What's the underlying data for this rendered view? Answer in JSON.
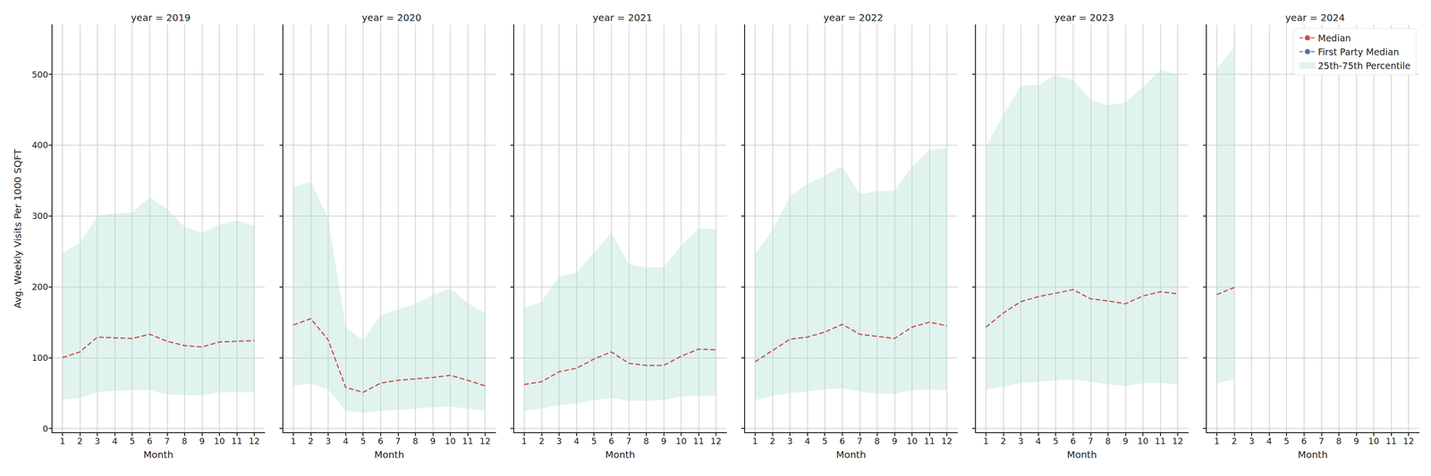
{
  "chart_data": [
    {
      "type": "line",
      "title": "year = 2019",
      "xlabel": "Month",
      "ylabel": "Avg. Weekly Visits Per 1000 SQFT",
      "x": [
        1,
        2,
        3,
        4,
        5,
        6,
        7,
        8,
        9,
        10,
        11,
        12
      ],
      "xlim": [
        0.4,
        12.6
      ],
      "xticks": [
        1,
        2,
        3,
        4,
        5,
        6,
        7,
        8,
        9,
        10,
        11,
        12
      ],
      "ylim": [
        -6,
        570
      ],
      "yticks": [
        0,
        100,
        200,
        300,
        400,
        500
      ],
      "grid": true,
      "series": [
        {
          "name": "Median",
          "color": "#c44e52",
          "line_style": "dashed",
          "values": [
            100,
            108,
            129,
            128,
            127,
            133,
            123,
            117,
            115,
            122,
            123,
            124
          ]
        },
        {
          "name": "First Party Median",
          "color": "#4c72b0",
          "line_style": "dashed",
          "values": [
            null,
            null,
            null,
            null,
            null,
            null,
            null,
            null,
            null,
            null,
            null,
            null
          ]
        },
        {
          "name": "25th-75th Percentile",
          "type": "band",
          "color": "#a8dccd",
          "lower": [
            40,
            43,
            51,
            53,
            54,
            54,
            48,
            47,
            47,
            51,
            51,
            51
          ],
          "upper": [
            248,
            262,
            300,
            304,
            305,
            326,
            310,
            285,
            276,
            288,
            294,
            286
          ]
        }
      ]
    },
    {
      "type": "line",
      "title": "year = 2020",
      "xlabel": "Month",
      "tick_labels": "x",
      "x": [
        1,
        2,
        3,
        4,
        5,
        6,
        7,
        8,
        9,
        10,
        11,
        12
      ],
      "xlim": [
        0.4,
        12.6
      ],
      "xticks": [
        1,
        2,
        3,
        4,
        5,
        6,
        7,
        8,
        9,
        10,
        11,
        12
      ],
      "ylim": [
        -6,
        570
      ],
      "yticks": [
        0,
        100,
        200,
        300,
        400,
        500
      ],
      "grid": true,
      "series": [
        {
          "name": "Median",
          "color": "#c44e52",
          "line_style": "dashed",
          "values": [
            146,
            155,
            125,
            58,
            51,
            64,
            68,
            70,
            72,
            75,
            68,
            60
          ]
        },
        {
          "name": "First Party Median",
          "color": "#4c72b0",
          "line_style": "dashed",
          "values": [
            null,
            null,
            null,
            null,
            null,
            null,
            null,
            null,
            null,
            null,
            null,
            null
          ]
        },
        {
          "name": "25th-75th Percentile",
          "type": "band",
          "color": "#a8dccd",
          "lower": [
            60,
            63,
            55,
            25,
            22,
            25,
            26,
            28,
            30,
            31,
            28,
            25
          ],
          "upper": [
            341,
            348,
            297,
            143,
            124,
            160,
            168,
            176,
            188,
            198,
            177,
            163
          ]
        }
      ]
    },
    {
      "type": "line",
      "title": "year = 2021",
      "xlabel": "Month",
      "tick_labels": "x",
      "x": [
        1,
        2,
        3,
        4,
        5,
        6,
        7,
        8,
        9,
        10,
        11,
        12
      ],
      "xlim": [
        0.4,
        12.6
      ],
      "xticks": [
        1,
        2,
        3,
        4,
        5,
        6,
        7,
        8,
        9,
        10,
        11,
        12
      ],
      "ylim": [
        -6,
        570
      ],
      "yticks": [
        0,
        100,
        200,
        300,
        400,
        500
      ],
      "grid": true,
      "series": [
        {
          "name": "Median",
          "color": "#c44e52",
          "line_style": "dashed",
          "values": [
            62,
            66,
            80,
            85,
            98,
            108,
            92,
            89,
            89,
            102,
            112,
            111
          ]
        },
        {
          "name": "First Party Median",
          "color": "#4c72b0",
          "line_style": "dashed",
          "values": [
            null,
            null,
            null,
            null,
            null,
            null,
            null,
            null,
            null,
            null,
            null,
            null
          ]
        },
        {
          "name": "25th-75th Percentile",
          "type": "band",
          "color": "#a8dccd",
          "lower": [
            25,
            28,
            33,
            35,
            40,
            43,
            39,
            39,
            40,
            45,
            46,
            46
          ],
          "upper": [
            170,
            179,
            215,
            220,
            248,
            277,
            232,
            227,
            228,
            258,
            283,
            281
          ]
        }
      ]
    },
    {
      "type": "line",
      "title": "year = 2022",
      "xlabel": "Month",
      "tick_labels": "x",
      "x": [
        1,
        2,
        3,
        4,
        5,
        6,
        7,
        8,
        9,
        10,
        11,
        12
      ],
      "xlim": [
        0.4,
        12.6
      ],
      "xticks": [
        1,
        2,
        3,
        4,
        5,
        6,
        7,
        8,
        9,
        10,
        11,
        12
      ],
      "ylim": [
        -6,
        570
      ],
      "yticks": [
        0,
        100,
        200,
        300,
        400,
        500
      ],
      "grid": true,
      "series": [
        {
          "name": "Median",
          "color": "#c44e52",
          "line_style": "dashed",
          "values": [
            94,
            110,
            126,
            129,
            136,
            147,
            133,
            130,
            127,
            143,
            150,
            145
          ]
        },
        {
          "name": "First Party Median",
          "color": "#4c72b0",
          "line_style": "dashed",
          "values": [
            null,
            null,
            null,
            null,
            null,
            null,
            null,
            null,
            null,
            null,
            null,
            null
          ]
        },
        {
          "name": "25th-75th Percentile",
          "type": "band",
          "color": "#a8dccd",
          "lower": [
            40,
            46,
            50,
            52,
            55,
            57,
            52,
            49,
            49,
            54,
            55,
            54
          ],
          "upper": [
            246,
            280,
            328,
            345,
            357,
            370,
            331,
            335,
            336,
            370,
            393,
            396
          ]
        }
      ]
    },
    {
      "type": "line",
      "title": "year = 2023",
      "xlabel": "Month",
      "tick_labels": "x",
      "x": [
        1,
        2,
        3,
        4,
        5,
        6,
        7,
        8,
        9,
        10,
        11,
        12
      ],
      "xlim": [
        0.4,
        12.6
      ],
      "xticks": [
        1,
        2,
        3,
        4,
        5,
        6,
        7,
        8,
        9,
        10,
        11,
        12
      ],
      "ylim": [
        -6,
        570
      ],
      "yticks": [
        0,
        100,
        200,
        300,
        400,
        500
      ],
      "grid": true,
      "series": [
        {
          "name": "Median",
          "color": "#c44e52",
          "line_style": "dashed",
          "values": [
            143,
            163,
            179,
            186,
            191,
            196,
            183,
            180,
            176,
            187,
            193,
            190
          ]
        },
        {
          "name": "First Party Median",
          "color": "#4c72b0",
          "line_style": "dashed",
          "values": [
            null,
            null,
            null,
            null,
            null,
            null,
            null,
            null,
            null,
            null,
            null,
            null
          ]
        },
        {
          "name": "25th-75th Percentile",
          "type": "band",
          "color": "#a8dccd",
          "lower": [
            55,
            59,
            64,
            66,
            68,
            69,
            66,
            62,
            60,
            64,
            64,
            62
          ],
          "upper": [
            398,
            443,
            484,
            485,
            499,
            492,
            464,
            456,
            460,
            482,
            506,
            500
          ]
        }
      ]
    },
    {
      "type": "line",
      "title": "year = 2024",
      "xlabel": "Month",
      "tick_labels": "x",
      "legend": "upper right",
      "x": [
        1,
        2,
        3,
        4,
        5,
        6,
        7,
        8,
        9,
        10,
        11,
        12
      ],
      "xlim": [
        0.4,
        12.6
      ],
      "xticks": [
        1,
        2,
        3,
        4,
        5,
        6,
        7,
        8,
        9,
        10,
        11,
        12
      ],
      "ylim": [
        -6,
        570
      ],
      "yticks": [
        0,
        100,
        200,
        300,
        400,
        500
      ],
      "grid": true,
      "series": [
        {
          "name": "Median",
          "color": "#c44e52",
          "line_style": "dashed",
          "values": [
            189,
            199,
            null,
            null,
            null,
            null,
            null,
            null,
            null,
            null,
            null,
            null
          ]
        },
        {
          "name": "First Party Median",
          "color": "#4c72b0",
          "line_style": "dashed",
          "values": [
            null,
            null,
            null,
            null,
            null,
            null,
            null,
            null,
            null,
            null,
            null,
            null
          ]
        },
        {
          "name": "25th-75th Percentile",
          "type": "band",
          "color": "#a8dccd",
          "lower": [
            64,
            69,
            null,
            null,
            null,
            null,
            null,
            null,
            null,
            null,
            null,
            null
          ],
          "upper": [
            508,
            538,
            null,
            null,
            null,
            null,
            null,
            null,
            null,
            null,
            null,
            null
          ]
        }
      ]
    }
  ]
}
